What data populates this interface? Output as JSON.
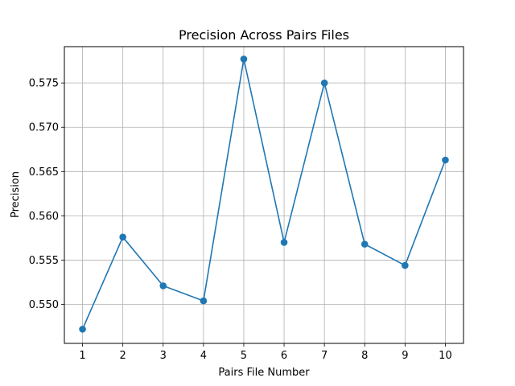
{
  "chart_data": {
    "type": "line",
    "title": "Precision Across Pairs Files",
    "xlabel": "Pairs File Number",
    "ylabel": "Precision",
    "x": [
      1,
      2,
      3,
      4,
      5,
      6,
      7,
      8,
      9,
      10
    ],
    "xticks": [
      "1",
      "2",
      "3",
      "4",
      "5",
      "6",
      "7",
      "8",
      "9",
      "10"
    ],
    "yticks": [
      "0.550",
      "0.555",
      "0.560",
      "0.565",
      "0.570",
      "0.575"
    ],
    "ytick_values": [
      0.55,
      0.555,
      0.56,
      0.565,
      0.57,
      0.575
    ],
    "xlim": [
      0.55,
      10.45
    ],
    "ylim": [
      0.5456,
      0.5791
    ],
    "grid": true,
    "series": [
      {
        "values": [
          0.5472,
          0.5576,
          0.5521,
          0.5504,
          0.5777,
          0.557,
          0.575,
          0.5568,
          0.5544,
          0.5663
        ],
        "color": "#1f77b4",
        "marker": "circle"
      }
    ]
  }
}
